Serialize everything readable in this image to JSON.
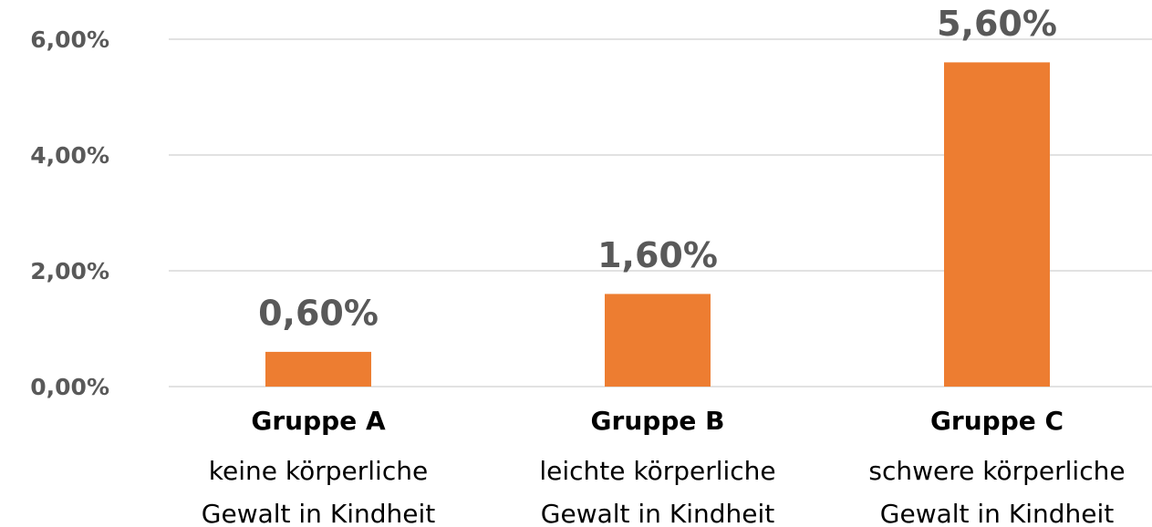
{
  "chart_data": {
    "type": "bar",
    "categories": [
      "Gruppe A",
      "Gruppe B",
      "Gruppe C"
    ],
    "category_descriptions": [
      [
        "keine körperliche",
        "Gewalt in Kindheit"
      ],
      [
        "leichte körperliche",
        "Gewalt in Kindheit"
      ],
      [
        "schwere körperliche",
        "Gewalt in Kindheit"
      ]
    ],
    "values": [
      0.6,
      1.6,
      5.6
    ],
    "value_labels": [
      "0,60%",
      "1,60%",
      "5,60%"
    ],
    "color": "#ed7d31",
    "ylim": [
      0,
      6
    ],
    "yticks": [
      {
        "value": 0,
        "label": "0,00%"
      },
      {
        "value": 2,
        "label": "2,00%"
      },
      {
        "value": 4,
        "label": "4,00%"
      },
      {
        "value": 6,
        "label": "6,00%"
      }
    ],
    "grid": true
  }
}
